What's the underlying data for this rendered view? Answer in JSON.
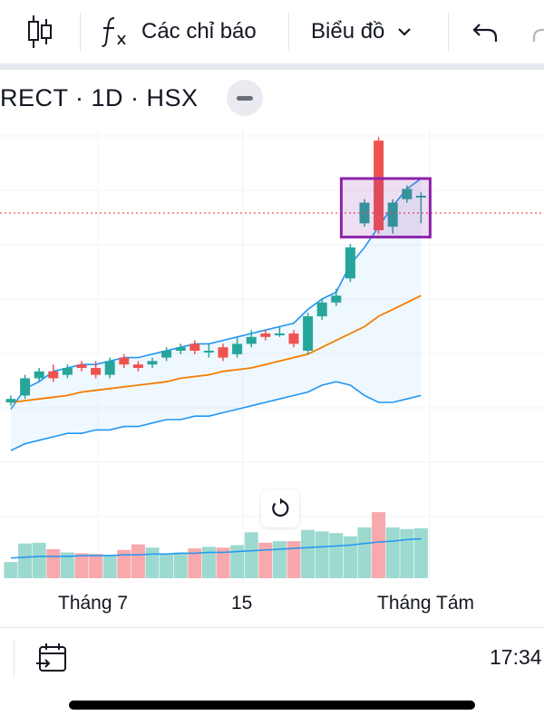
{
  "toolbar": {
    "indicators_label": "Các chỉ báo",
    "chart_type_label": "Biểu đồ",
    "icons": [
      "candles-icon",
      "fx-icon",
      "chevron-down-icon",
      "undo-icon",
      "redo-icon"
    ]
  },
  "symbol": {
    "text": "RECT · 1D · HSX"
  },
  "chart_data": {
    "type": "candlestick",
    "x_labels": [
      "Tháng 7",
      "15",
      "Tháng Tám"
    ],
    "colors": {
      "up": "#26a69a",
      "down": "#ef5350",
      "volume_up": "#9cd9cf",
      "volume_down": "#f7a9ad",
      "bollinger": "#2196f3",
      "moving_average": "#f57c00",
      "selection": "#8e24aa",
      "price_line": "#ef5350"
    },
    "candles": [
      {
        "o": 2.0,
        "h": 2.2,
        "l": 1.9,
        "c": 2.1
      },
      {
        "o": 2.2,
        "h": 2.8,
        "l": 2.1,
        "c": 2.7
      },
      {
        "o": 2.7,
        "h": 3.0,
        "l": 2.6,
        "c": 2.9
      },
      {
        "o": 2.9,
        "h": 3.1,
        "l": 2.6,
        "c": 2.7
      },
      {
        "o": 2.8,
        "h": 3.1,
        "l": 2.7,
        "c": 3.0
      },
      {
        "o": 3.1,
        "h": 3.2,
        "l": 2.9,
        "c": 3.0
      },
      {
        "o": 3.0,
        "h": 3.2,
        "l": 2.7,
        "c": 2.8
      },
      {
        "o": 2.8,
        "h": 3.3,
        "l": 2.7,
        "c": 3.2
      },
      {
        "o": 3.3,
        "h": 3.4,
        "l": 3.0,
        "c": 3.1
      },
      {
        "o": 3.1,
        "h": 3.2,
        "l": 2.9,
        "c": 3.0
      },
      {
        "o": 3.1,
        "h": 3.3,
        "l": 3.0,
        "c": 3.2
      },
      {
        "o": 3.3,
        "h": 3.6,
        "l": 3.2,
        "c": 3.5
      },
      {
        "o": 3.5,
        "h": 3.7,
        "l": 3.4,
        "c": 3.6
      },
      {
        "o": 3.7,
        "h": 3.8,
        "l": 3.4,
        "c": 3.5
      },
      {
        "o": 3.5,
        "h": 3.7,
        "l": 3.3,
        "c": 3.5
      },
      {
        "o": 3.6,
        "h": 3.7,
        "l": 3.2,
        "c": 3.3
      },
      {
        "o": 3.4,
        "h": 3.9,
        "l": 3.3,
        "c": 3.7
      },
      {
        "o": 3.7,
        "h": 4.1,
        "l": 3.6,
        "c": 3.9
      },
      {
        "o": 4.0,
        "h": 4.1,
        "l": 3.8,
        "c": 3.9
      },
      {
        "o": 4.0,
        "h": 4.2,
        "l": 3.9,
        "c": 4.0
      },
      {
        "o": 4.0,
        "h": 4.1,
        "l": 3.6,
        "c": 3.7
      },
      {
        "o": 3.5,
        "h": 4.6,
        "l": 3.4,
        "c": 4.5
      },
      {
        "o": 4.5,
        "h": 5.0,
        "l": 4.4,
        "c": 4.9
      },
      {
        "o": 4.9,
        "h": 5.3,
        "l": 4.8,
        "c": 5.1
      },
      {
        "o": 5.6,
        "h": 6.6,
        "l": 5.5,
        "c": 6.5
      },
      {
        "o": 7.2,
        "h": 7.9,
        "l": 7.1,
        "c": 7.8
      },
      {
        "o": 9.6,
        "h": 9.7,
        "l": 6.9,
        "c": 7.0
      },
      {
        "o": 7.1,
        "h": 7.9,
        "l": 6.9,
        "c": 7.8
      },
      {
        "o": 7.9,
        "h": 8.3,
        "l": 7.8,
        "c": 8.2
      },
      {
        "o": 8.0,
        "h": 8.1,
        "l": 7.2,
        "c": 8.0
      }
    ],
    "volumes": [
      2.0,
      4.3,
      4.4,
      3.6,
      3.2,
      3.1,
      3.0,
      2.9,
      3.5,
      4.2,
      3.8,
      3.1,
      3.2,
      3.7,
      3.9,
      3.8,
      4.1,
      5.7,
      4.4,
      4.6,
      4.6,
      6.0,
      5.8,
      5.6,
      5.2,
      6.3,
      8.2,
      6.3,
      6.1,
      6.2
    ],
    "bollinger_upper": [
      1.8,
      2.4,
      2.6,
      2.9,
      3.0,
      3.1,
      3.1,
      3.2,
      3.3,
      3.3,
      3.4,
      3.5,
      3.6,
      3.7,
      3.7,
      3.8,
      3.9,
      4.0,
      4.1,
      4.2,
      4.3,
      4.7,
      5.0,
      5.2,
      6.0,
      6.5,
      7.1,
      7.7,
      8.2,
      8.5
    ],
    "bollinger_lower": [
      0.6,
      0.8,
      0.9,
      1.0,
      1.1,
      1.1,
      1.2,
      1.2,
      1.3,
      1.3,
      1.4,
      1.5,
      1.5,
      1.6,
      1.6,
      1.7,
      1.8,
      1.9,
      2.0,
      2.1,
      2.2,
      2.3,
      2.5,
      2.6,
      2.5,
      2.2,
      2.0,
      2.0,
      2.1,
      2.2
    ],
    "moving_average": [
      2.0,
      2.05,
      2.1,
      2.15,
      2.2,
      2.3,
      2.35,
      2.4,
      2.45,
      2.5,
      2.55,
      2.6,
      2.7,
      2.75,
      2.8,
      2.9,
      2.95,
      3.0,
      3.1,
      3.2,
      3.3,
      3.4,
      3.6,
      3.8,
      4.0,
      4.2,
      4.5,
      4.7,
      4.9,
      5.1
    ],
    "volume_ma": [
      2.5,
      2.6,
      2.7,
      2.7,
      2.7,
      2.8,
      2.8,
      2.8,
      2.9,
      2.9,
      3.0,
      3.0,
      3.1,
      3.1,
      3.2,
      3.2,
      3.3,
      3.4,
      3.5,
      3.6,
      3.7,
      3.8,
      3.9,
      4.0,
      4.1,
      4.3,
      4.5,
      4.6,
      4.8,
      4.9
    ],
    "last_price": 7.5
  },
  "bottom_bar": {
    "time": "17:34"
  }
}
